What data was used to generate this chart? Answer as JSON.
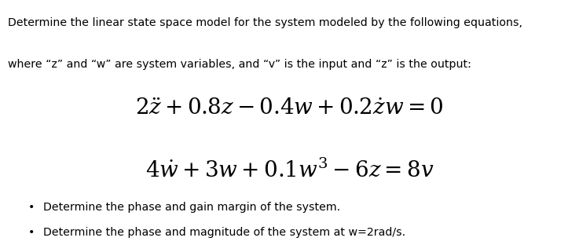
{
  "background_color": "#ffffff",
  "text_color": "#000000",
  "header_line1": "Determine the linear state space model for the system modeled by the following equations,",
  "header_line2": "where “z” and “w” are system variables, and “v” is the input and “z” is the output:",
  "eq1": "$2\\ddot{z} + 0.8z - 0.4w + 0.2\\dot{z}w = 0$",
  "eq2": "$4\\dot{w} + 3w + 0.1w^3 - 6z = 8v$",
  "bullet1": "Determine the phase and gain margin of the system.",
  "bullet2": "Determine the phase and magnitude of the system at w=2rad/s.",
  "header_fontsize": 10.2,
  "eq_fontsize": 20,
  "bullet_fontsize": 10.2,
  "figsize": [
    7.37,
    3.12
  ],
  "dpi": 100
}
